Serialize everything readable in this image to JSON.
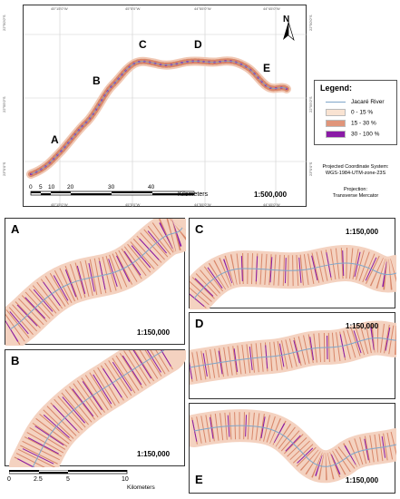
{
  "main_map": {
    "section_labels": [
      "A",
      "B",
      "C",
      "D",
      "E"
    ],
    "scale_text": "1:500,000",
    "scalebar_ticks": [
      "0",
      "5",
      "10",
      "20",
      "30",
      "40"
    ],
    "scalebar_unit": "Kilometers",
    "top_coords": [
      "45°15'0\"W",
      "45°5'0\"W",
      "44°55'0\"W",
      "44°45'0\"W"
    ],
    "bottom_coords": [
      "45°15'0\"W",
      "45°5'0\"W",
      "44°55'0\"W",
      "44°45'0\"W"
    ],
    "left_coords": [
      "22°50'0\"S",
      "22°55'0\"S",
      "23°0'0\"S"
    ],
    "right_coords": [
      "22°50'0\"S",
      "22°55'0\"S",
      "23°0'0\"S"
    ],
    "north_label": "N"
  },
  "legend": {
    "title": "Legend:",
    "river_label": "Jacaré River",
    "classes": [
      {
        "label": "0 - 15 %",
        "color": "#f9e3d2"
      },
      {
        "label": "15 - 30 %",
        "color": "#e0957a"
      },
      {
        "label": "30 - 100 %",
        "color": "#8a1aa6"
      }
    ]
  },
  "projection": {
    "system_label": "Projected Coordinate System:",
    "system_value": "WGS-1984-UTM-zone-23S",
    "projection_label": "Projection:",
    "projection_value": "Transverse Mercator"
  },
  "insets": [
    {
      "label": "A",
      "scale": "1:150,000"
    },
    {
      "label": "B",
      "scale": "1:150,000"
    },
    {
      "label": "C",
      "scale": "1:150,000"
    },
    {
      "label": "D",
      "scale": "1:150,000"
    },
    {
      "label": "E",
      "scale": "1:150,000"
    }
  ],
  "inset_scalebar": {
    "ticks": [
      "0",
      "2.5",
      "5",
      "10"
    ],
    "unit": "Kilometers"
  },
  "colors": {
    "river": "#7fa6c9",
    "low": "#f9e3d2",
    "mid": "#e0957a",
    "high": "#8a1aa6",
    "grid": "#cfcfcf"
  }
}
